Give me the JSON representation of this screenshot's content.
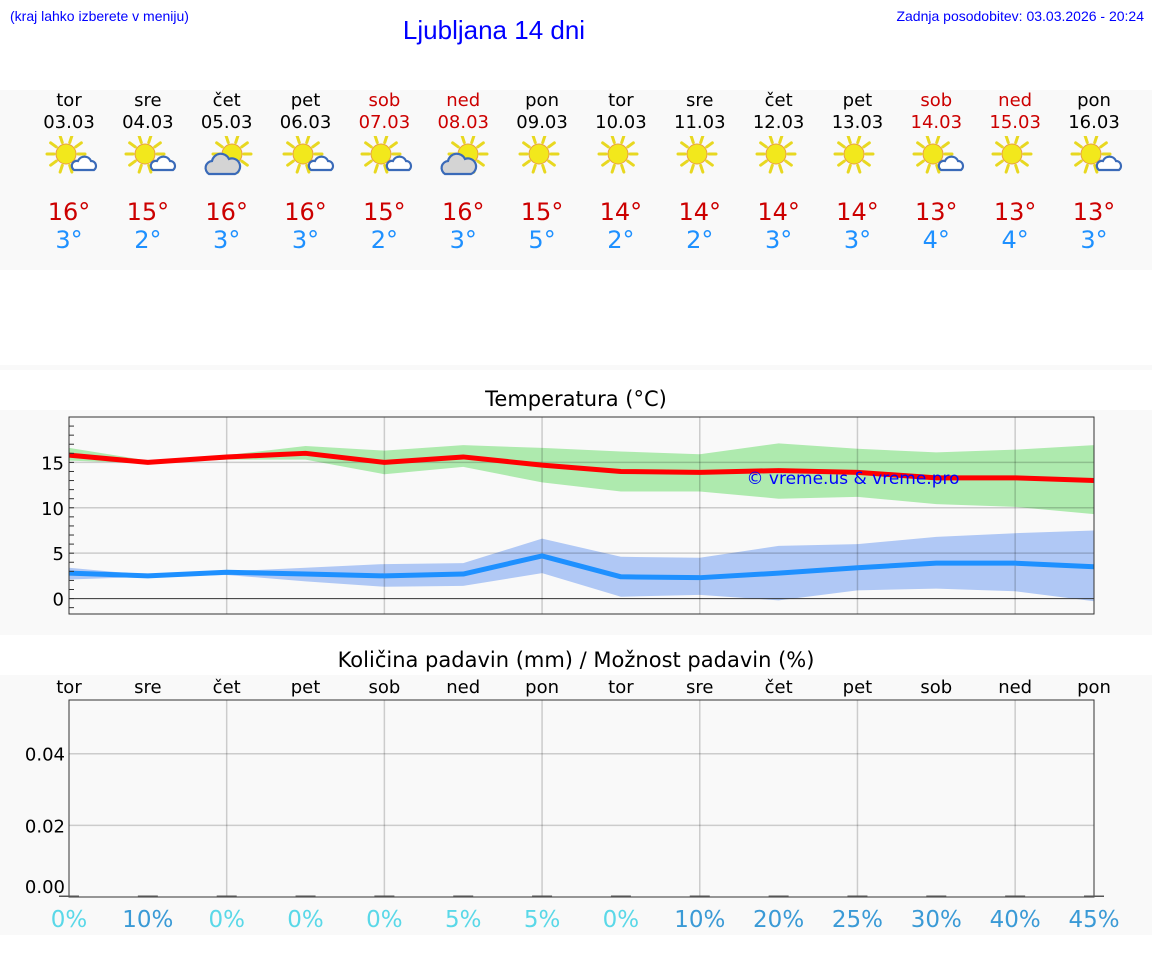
{
  "header": {
    "hint": "(kraj lahko izberete v meniju)",
    "title": "Ljubljana 14 dni",
    "updated": "Zadnja posodobitev: 03.03.2026 - 20:24"
  },
  "colors": {
    "max": "#cc0000",
    "min": "#1e90ff",
    "weekend": "#cc0000",
    "max_band": "#aeeaae",
    "min_band": "#b0c8f5",
    "prob_low": "#5ad8e8",
    "prob_high": "#3a9ad6",
    "watermark": "#0000ff"
  },
  "days": [
    {
      "name": "tor",
      "date": "03.03",
      "icon": "partly-cloudy-icon",
      "max": "16°",
      "min": "3°",
      "weekend": false,
      "prob": "0%"
    },
    {
      "name": "sre",
      "date": "04.03",
      "icon": "partly-cloudy-icon",
      "max": "15°",
      "min": "2°",
      "weekend": false,
      "prob": "10%"
    },
    {
      "name": "čet",
      "date": "05.03",
      "icon": "mostly-cloudy-icon",
      "max": "16°",
      "min": "3°",
      "weekend": false,
      "prob": "0%"
    },
    {
      "name": "pet",
      "date": "06.03",
      "icon": "partly-cloudy-icon",
      "max": "16°",
      "min": "3°",
      "weekend": false,
      "prob": "0%"
    },
    {
      "name": "sob",
      "date": "07.03",
      "icon": "partly-cloudy-icon",
      "max": "15°",
      "min": "2°",
      "weekend": true,
      "prob": "0%"
    },
    {
      "name": "ned",
      "date": "08.03",
      "icon": "mostly-cloudy-icon",
      "max": "16°",
      "min": "3°",
      "weekend": true,
      "prob": "5%"
    },
    {
      "name": "pon",
      "date": "09.03",
      "icon": "sunny-icon",
      "max": "15°",
      "min": "5°",
      "weekend": false,
      "prob": "5%"
    },
    {
      "name": "tor",
      "date": "10.03",
      "icon": "sunny-icon",
      "max": "14°",
      "min": "2°",
      "weekend": false,
      "prob": "0%"
    },
    {
      "name": "sre",
      "date": "11.03",
      "icon": "sunny-icon",
      "max": "14°",
      "min": "2°",
      "weekend": false,
      "prob": "10%"
    },
    {
      "name": "čet",
      "date": "12.03",
      "icon": "sunny-icon",
      "max": "14°",
      "min": "3°",
      "weekend": false,
      "prob": "20%"
    },
    {
      "name": "pet",
      "date": "13.03",
      "icon": "sunny-icon",
      "max": "14°",
      "min": "3°",
      "weekend": false,
      "prob": "25%"
    },
    {
      "name": "sob",
      "date": "14.03",
      "icon": "partly-cloudy-icon",
      "max": "13°",
      "min": "4°",
      "weekend": true,
      "prob": "30%"
    },
    {
      "name": "ned",
      "date": "15.03",
      "icon": "sunny-icon",
      "max": "13°",
      "min": "4°",
      "weekend": true,
      "prob": "40%"
    },
    {
      "name": "pon",
      "date": "16.03",
      "icon": "partly-cloudy-icon",
      "max": "13°",
      "min": "3°",
      "weekend": false,
      "prob": "45%"
    }
  ],
  "chart_data": [
    {
      "type": "line",
      "title": "Temperatura (°C)",
      "watermark": "© vreme.us & vreme.pro",
      "categories": [
        "03.03",
        "04.03",
        "05.03",
        "06.03",
        "07.03",
        "08.03",
        "09.03",
        "10.03",
        "11.03",
        "12.03",
        "13.03",
        "14.03",
        "15.03",
        "16.03"
      ],
      "ylim": [
        -1.7,
        20
      ],
      "yticks": [
        "0",
        "5",
        "10",
        "15"
      ],
      "grid": true,
      "series": [
        {
          "values": [
            15.8,
            15.0,
            15.6,
            16.0,
            15.0,
            15.6,
            14.7,
            14.0,
            13.9,
            14.1,
            13.9,
            13.3,
            13.3,
            13.0
          ],
          "band_upper": [
            16.6,
            15.2,
            15.8,
            16.8,
            16.3,
            16.9,
            16.6,
            16.2,
            15.9,
            17.1,
            16.5,
            16.1,
            16.4,
            16.9
          ],
          "band_lower": [
            15.2,
            14.9,
            15.3,
            15.3,
            13.7,
            14.5,
            12.8,
            11.8,
            11.8,
            11.0,
            11.2,
            10.4,
            10.1,
            9.3
          ],
          "color": "#ff0000",
          "band_color": "#aeeaae"
        },
        {
          "values": [
            2.8,
            2.5,
            2.9,
            2.7,
            2.5,
            2.7,
            4.7,
            2.4,
            2.3,
            2.8,
            3.4,
            3.9,
            3.9,
            3.5
          ],
          "band_upper": [
            3.4,
            2.6,
            3.0,
            3.4,
            3.8,
            3.9,
            6.6,
            4.6,
            4.5,
            5.8,
            6.0,
            6.8,
            7.2,
            7.5
          ],
          "band_lower": [
            2.1,
            2.4,
            2.6,
            1.9,
            1.3,
            1.4,
            2.8,
            0.2,
            0.4,
            -0.2,
            0.9,
            1.1,
            0.8,
            -0.3
          ],
          "color": "#1e90ff",
          "band_color": "#b0c8f5"
        }
      ]
    },
    {
      "type": "bar",
      "title": "Količina padavin (mm) / Možnost padavin (%)",
      "categories": [
        "tor",
        "sre",
        "čet",
        "pet",
        "sob",
        "ned",
        "pon",
        "tor",
        "sre",
        "čet",
        "pet",
        "sob",
        "ned",
        "pon"
      ],
      "values": [
        0,
        0,
        0,
        0,
        0,
        0,
        0,
        0,
        0,
        0,
        0,
        0,
        0,
        0
      ],
      "probability": [
        "0%",
        "10%",
        "0%",
        "0%",
        "0%",
        "5%",
        "5%",
        "0%",
        "10%",
        "20%",
        "25%",
        "30%",
        "40%",
        "45%"
      ],
      "ylim": [
        0,
        0.055
      ],
      "yticks": [
        "0.00",
        "0.02",
        "0.04"
      ],
      "grid": true
    }
  ]
}
